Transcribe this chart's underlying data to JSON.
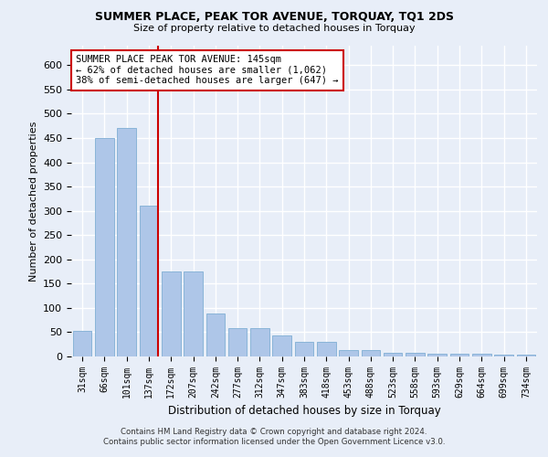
{
  "title1": "SUMMER PLACE, PEAK TOR AVENUE, TORQUAY, TQ1 2DS",
  "title2": "Size of property relative to detached houses in Torquay",
  "xlabel": "Distribution of detached houses by size in Torquay",
  "ylabel": "Number of detached properties",
  "categories": [
    "31sqm",
    "66sqm",
    "101sqm",
    "137sqm",
    "172sqm",
    "207sqm",
    "242sqm",
    "277sqm",
    "312sqm",
    "347sqm",
    "383sqm",
    "418sqm",
    "453sqm",
    "488sqm",
    "523sqm",
    "558sqm",
    "593sqm",
    "629sqm",
    "664sqm",
    "699sqm",
    "734sqm"
  ],
  "values": [
    53,
    450,
    470,
    310,
    175,
    175,
    88,
    58,
    58,
    43,
    30,
    30,
    14,
    14,
    8,
    8,
    6,
    6,
    6,
    3,
    3
  ],
  "bar_color": "#aec6e8",
  "bar_edge_color": "#8ab4d8",
  "vline_x_index": 3,
  "vline_color": "#cc0000",
  "annotation_line1": "SUMMER PLACE PEAK TOR AVENUE: 145sqm",
  "annotation_line2": "← 62% of detached houses are smaller (1,062)",
  "annotation_line3": "38% of semi-detached houses are larger (647) →",
  "annotation_box_color": "#ffffff",
  "annotation_box_edge": "#cc0000",
  "ylim": [
    0,
    640
  ],
  "yticks": [
    0,
    50,
    100,
    150,
    200,
    250,
    300,
    350,
    400,
    450,
    500,
    550,
    600
  ],
  "footer1": "Contains HM Land Registry data © Crown copyright and database right 2024.",
  "footer2": "Contains public sector information licensed under the Open Government Licence v3.0.",
  "bg_color": "#e8eef8",
  "plot_bg_color": "#e8eef8",
  "grid_color": "#ffffff"
}
